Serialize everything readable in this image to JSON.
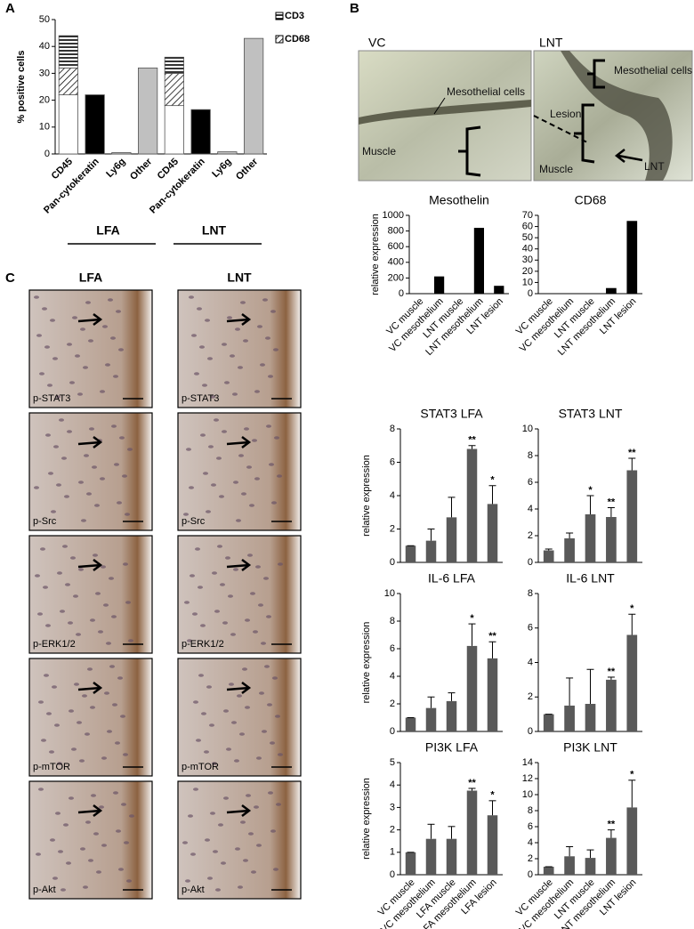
{
  "panel_labels": [
    "A",
    "B",
    "C"
  ],
  "micrograph_b": {
    "titles": [
      "VC",
      "LNT"
    ],
    "annotations": [
      "Mesothelial cells",
      "Muscle",
      "Mesothelial cells",
      "Lesion",
      "Muscle",
      "LNT"
    ]
  },
  "micrograph_c": {
    "columns": [
      "LFA",
      "LNT"
    ],
    "stains": [
      "p-STAT3",
      "p-Src",
      "p-ERK1/2",
      "p-mTOR",
      "p-Akt"
    ]
  },
  "chart_data": [
    {
      "type": "bar",
      "ylabel": "% positive cells",
      "categories": [
        "CD45",
        "Pan-cytokeratin",
        "Ly6g",
        "Other",
        "CD45",
        "Pan-cytokeratin",
        "Ly6g",
        "Other"
      ],
      "groups": [
        "LFA",
        "LNT"
      ],
      "values": [
        22,
        22,
        0.5,
        32,
        18,
        16.5,
        0.8,
        43
      ],
      "colors": [
        "#ffffff",
        "#000000",
        "#c0c0c0",
        "#c0c0c0",
        "#ffffff",
        "#000000",
        "#c0c0c0",
        "#c0c0c0"
      ],
      "series": [
        {
          "name": "CD68",
          "pattern": "diagonal",
          "values": [
            10,
            null,
            null,
            null,
            12,
            null,
            null,
            null
          ]
        },
        {
          "name": "CD3",
          "pattern": "horizontal",
          "values": [
            12,
            null,
            null,
            null,
            6,
            null,
            null,
            null
          ]
        }
      ],
      "ylim": [
        0,
        50
      ],
      "yticks": [
        0,
        10,
        20,
        30,
        40,
        50
      ]
    },
    {
      "type": "bar",
      "title": "Mesothelin",
      "ylabel": "relative expression",
      "categories": [
        "VC muscle",
        "VC mesothelium",
        "LNT muscle",
        "LNT mesothelium",
        "LNT lesion"
      ],
      "values": [
        0,
        220,
        0,
        840,
        100
      ],
      "color": "#000000",
      "ylim": [
        0,
        1000
      ],
      "yticks": [
        0,
        200,
        400,
        600,
        800,
        1000
      ]
    },
    {
      "type": "bar",
      "title": "CD68",
      "categories": [
        "VC muscle",
        "VC mesothelium",
        "LNT muscle",
        "LNT mesothelium",
        "LNT lesion"
      ],
      "values": [
        0,
        0,
        0,
        5,
        65
      ],
      "color": "#000000",
      "ylim": [
        0,
        70
      ],
      "yticks": [
        0,
        10,
        20,
        30,
        40,
        50,
        60,
        70
      ]
    },
    {
      "type": "bar",
      "title": "STAT3 LFA",
      "ylabel": "relative expression",
      "values": [
        1,
        1.3,
        2.7,
        6.8,
        3.5
      ],
      "errors": [
        0,
        0.7,
        1.2,
        0.2,
        1.1
      ],
      "significance": [
        null,
        null,
        null,
        "**",
        "*"
      ],
      "color": "#595959",
      "ylim": [
        0,
        8
      ],
      "yticks": [
        0,
        2,
        4,
        6,
        8
      ]
    },
    {
      "type": "bar",
      "title": "STAT3 LNT",
      "values": [
        0.9,
        1.8,
        3.6,
        3.4,
        6.9
      ],
      "errors": [
        0.1,
        0.4,
        1.4,
        0.7,
        0.9
      ],
      "significance": [
        null,
        null,
        "*",
        "**",
        "**"
      ],
      "color": "#595959",
      "ylim": [
        0,
        10
      ],
      "yticks": [
        0,
        2,
        4,
        6,
        8,
        10
      ]
    },
    {
      "type": "bar",
      "title": "IL-6 LFA",
      "ylabel": "relative expression",
      "values": [
        1,
        1.7,
        2.2,
        6.2,
        5.3
      ],
      "errors": [
        0,
        0.8,
        0.6,
        1.6,
        1.2
      ],
      "significance": [
        null,
        null,
        null,
        "*",
        "**"
      ],
      "color": "#595959",
      "ylim": [
        0,
        10
      ],
      "yticks": [
        0,
        2,
        4,
        6,
        8,
        10
      ]
    },
    {
      "type": "bar",
      "title": "IL-6 LNT",
      "values": [
        1,
        1.5,
        1.6,
        3.0,
        5.6
      ],
      "errors": [
        0,
        1.6,
        2.0,
        0.15,
        1.2
      ],
      "significance": [
        null,
        null,
        null,
        "**",
        "*"
      ],
      "color": "#595959",
      "ylim": [
        0,
        8
      ],
      "yticks": [
        0,
        2,
        4,
        6,
        8
      ]
    },
    {
      "type": "bar",
      "title": "PI3K LFA",
      "ylabel": "relative expression",
      "categories": [
        "VC  muscle",
        "VC mesothelium",
        "LFA muscle",
        "LFA mesothelium",
        "LFA lesion"
      ],
      "values": [
        1,
        1.6,
        1.6,
        3.75,
        2.65
      ],
      "errors": [
        0,
        0.65,
        0.55,
        0.1,
        0.65
      ],
      "significance": [
        null,
        null,
        null,
        "**",
        "*"
      ],
      "color": "#595959",
      "ylim": [
        0,
        5
      ],
      "yticks": [
        0,
        1,
        2,
        3,
        4,
        5
      ]
    },
    {
      "type": "bar",
      "title": "PI3K LNT",
      "categories": [
        "VC muscle",
        "VC mesothelium",
        "LNT muscle",
        "LNT mesothelium",
        "LNT lesion"
      ],
      "values": [
        1,
        2.3,
        2.1,
        4.6,
        8.4
      ],
      "errors": [
        0,
        1.2,
        1.0,
        1.0,
        3.4
      ],
      "significance": [
        null,
        null,
        null,
        "**",
        "*"
      ],
      "color": "#595959",
      "ylim": [
        0,
        14
      ],
      "yticks": [
        0,
        2,
        4,
        6,
        8,
        10,
        12,
        14
      ]
    }
  ]
}
